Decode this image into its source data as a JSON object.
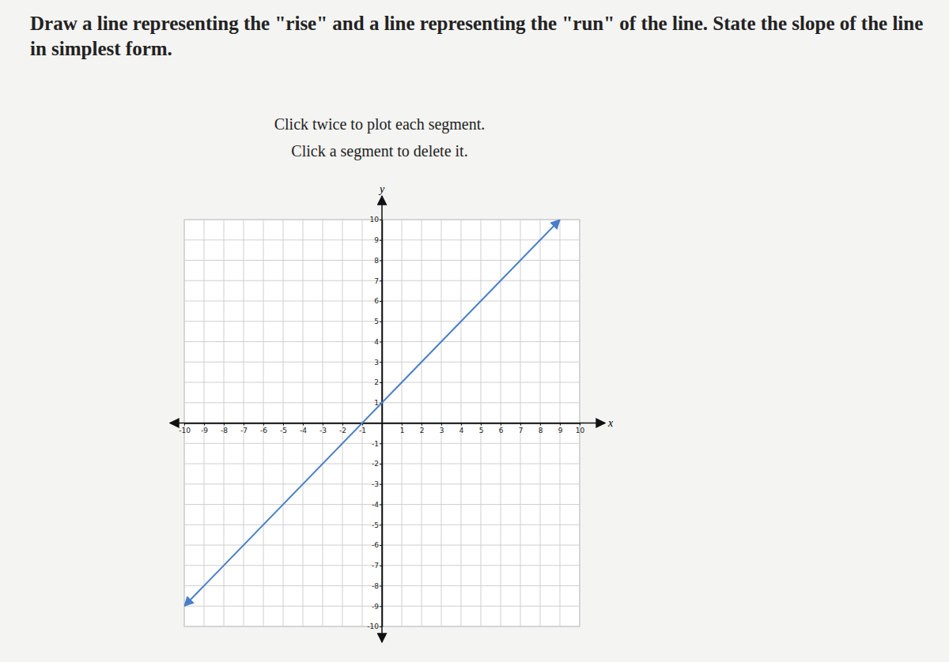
{
  "chart_data": {
    "type": "line",
    "title": "Draw a line representing the \"rise\" and a line representing the \"run\" of the line. State the slope of the line in simplest form.",
    "instructions": [
      "Click twice to plot each segment.",
      "Click a segment to delete it."
    ],
    "x_label": "x",
    "y_label": "y",
    "x": [
      -10,
      9
    ],
    "values": [
      -9,
      10
    ],
    "color": "#4a7fc6",
    "xlim": [
      -10,
      10
    ],
    "ylim": [
      -10,
      10
    ],
    "xticks": [
      -10,
      -9,
      -8,
      -7,
      -6,
      -5,
      -4,
      -3,
      -2,
      -1,
      1,
      2,
      3,
      4,
      5,
      6,
      7,
      8,
      9,
      10
    ],
    "yticks": [
      -10,
      -9,
      -8,
      -7,
      -6,
      -5,
      -4,
      -3,
      -2,
      -1,
      1,
      2,
      3,
      4,
      5,
      6,
      7,
      8,
      9,
      10
    ],
    "grid": true
  }
}
